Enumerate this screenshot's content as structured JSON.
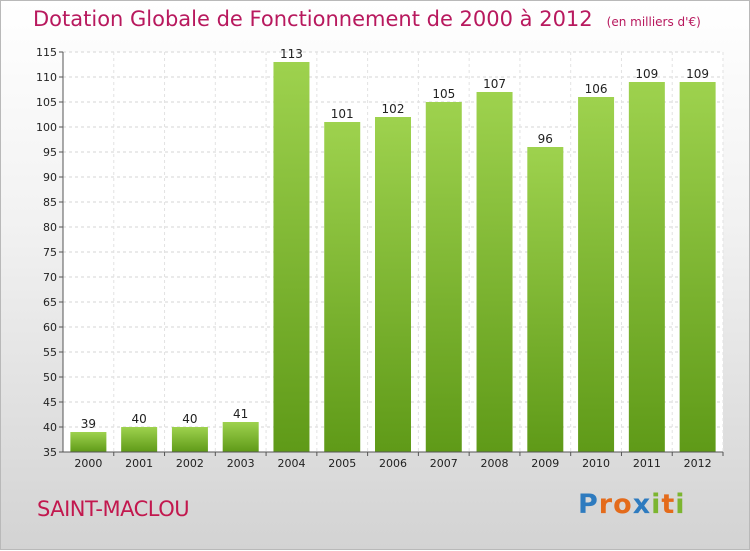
{
  "title": "Dotation Globale de Fonctionnement de 2000 à 2012",
  "unit": "(en milliers d'€)",
  "commune": "SAINT-MACLOU",
  "logo": {
    "letters": [
      "P",
      "r",
      "o",
      "x",
      "i",
      "t",
      "i"
    ],
    "colors": [
      "#2e7bbf",
      "#e46b1b",
      "#e46b1b",
      "#2e7bbf",
      "#7cb530",
      "#e46b1b",
      "#7cb530"
    ]
  },
  "colors": {
    "bar_top": "#9ed24e",
    "bar_bottom": "#5f9a18",
    "accent": "#b8195e"
  },
  "chart_data": {
    "type": "bar",
    "categories": [
      "2000",
      "2001",
      "2002",
      "2003",
      "2004",
      "2005",
      "2006",
      "2007",
      "2008",
      "2009",
      "2010",
      "2011",
      "2012"
    ],
    "values": [
      39,
      40,
      40,
      41,
      113,
      101,
      102,
      105,
      107,
      96,
      106,
      109,
      109
    ],
    "ylim": [
      35,
      115
    ],
    "yticks": [
      35,
      40,
      45,
      50,
      55,
      60,
      65,
      70,
      75,
      80,
      85,
      90,
      95,
      100,
      105,
      110,
      115
    ],
    "grid": true
  }
}
